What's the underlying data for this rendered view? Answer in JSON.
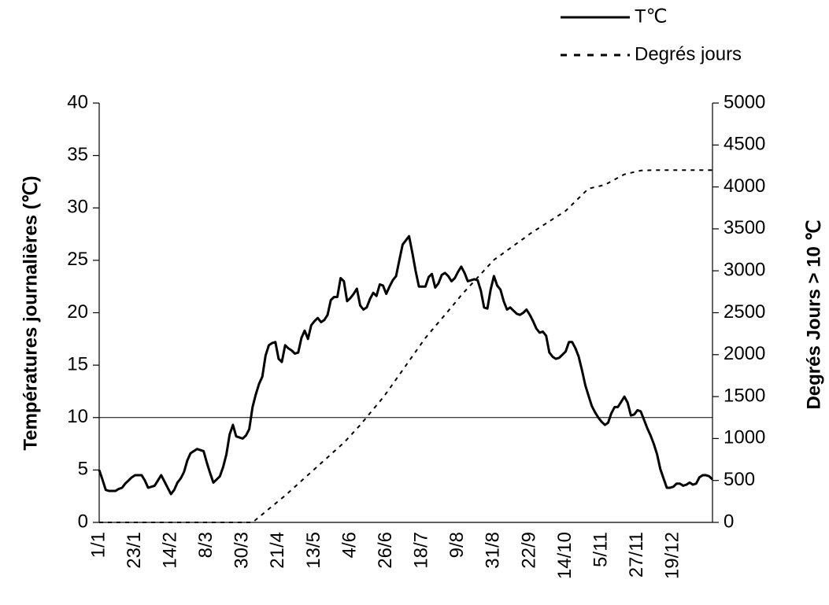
{
  "chart_data": {
    "type": "line",
    "y_label": "Températures journalières (℃)",
    "y2_label": "Degrés Jours > 10 ℃",
    "categories": [
      "1/1",
      null,
      null,
      null,
      null,
      null,
      null,
      null,
      null,
      null,
      null,
      "23/1",
      null,
      null,
      null,
      null,
      null,
      null,
      null,
      null,
      null,
      null,
      "14/2",
      null,
      null,
      null,
      null,
      null,
      null,
      null,
      null,
      null,
      null,
      "8/3",
      null,
      null,
      null,
      null,
      null,
      null,
      null,
      null,
      null,
      null,
      "30/3",
      null,
      null,
      null,
      null,
      null,
      null,
      null,
      null,
      null,
      null,
      "21/4",
      null,
      null,
      null,
      null,
      null,
      null,
      null,
      null,
      null,
      null,
      "13/5",
      null,
      null,
      null,
      null,
      null,
      null,
      null,
      null,
      null,
      null,
      "4/6",
      null,
      null,
      null,
      null,
      null,
      null,
      null,
      null,
      null,
      null,
      "26/6",
      null,
      null,
      null,
      null,
      null,
      null,
      null,
      null,
      null,
      null,
      "18/7",
      null,
      null,
      null,
      null,
      null,
      null,
      null,
      null,
      null,
      null,
      "9/8",
      null,
      null,
      null,
      null,
      null,
      null,
      null,
      null,
      null,
      null,
      "31/8",
      null,
      null,
      null,
      null,
      null,
      null,
      null,
      null,
      null,
      null,
      "22/9",
      null,
      null,
      null,
      null,
      null,
      null,
      null,
      null,
      null,
      null,
      "14/10",
      null,
      null,
      null,
      null,
      null,
      null,
      null,
      null,
      null,
      null,
      "5/11",
      null,
      null,
      null,
      null,
      null,
      null,
      null,
      null,
      null,
      null,
      "27/11",
      null,
      null,
      null,
      null,
      null,
      null,
      null,
      null,
      null,
      null,
      "19/12",
      null,
      null,
      null,
      null,
      null,
      null,
      null,
      null,
      null,
      null,
      null,
      null
    ],
    "series": [
      {
        "name": "T℃",
        "color": "#000000",
        "style": "solid",
        "values": [
          5,
          4.1,
          3.1,
          3,
          3,
          3,
          3.2,
          3.3,
          3.7,
          4,
          4.3,
          4.5,
          4.5,
          4.5,
          4,
          3.3,
          3.4,
          3.5,
          4,
          4.5,
          3.9,
          3.3,
          2.7,
          3.1,
          3.8,
          4.2,
          4.8,
          5.9,
          6.6,
          6.8,
          7,
          6.9,
          6.8,
          5.7,
          4.7,
          3.8,
          4.1,
          4.4,
          5.3,
          6.5,
          8.4,
          9.3,
          8.2,
          8.1,
          8,
          8.3,
          8.9,
          11,
          12.2,
          13.2,
          13.9,
          15.9,
          16.9,
          17.1,
          17.2,
          15.6,
          15.3,
          16.9,
          16.6,
          16.4,
          16.1,
          16.2,
          17.6,
          18.3,
          17.5,
          18.8,
          19.2,
          19.5,
          19.1,
          19.3,
          19.8,
          21.2,
          21.5,
          21.5,
          23.3,
          23,
          21.1,
          21.4,
          21.8,
          22.3,
          20.7,
          20.3,
          20.5,
          21.3,
          21.9,
          21.6,
          22.7,
          22.6,
          21.8,
          22.5,
          23.1,
          23.5,
          25,
          26.5,
          26.9,
          27.3,
          25.7,
          24,
          22.5,
          22.5,
          22.5,
          23.4,
          23.7,
          22.4,
          22.8,
          23.6,
          23.8,
          23.5,
          23,
          23.3,
          23.9,
          24.4,
          23.8,
          23,
          23.1,
          23.2,
          23.1,
          22.1,
          20.5,
          20.4,
          22.2,
          23.5,
          22.6,
          22.2,
          21.1,
          20.3,
          20.5,
          20.2,
          19.9,
          19.8,
          20,
          20.3,
          19.8,
          19.2,
          18.5,
          18.1,
          18.2,
          17.8,
          16.2,
          15.8,
          15.6,
          15.7,
          16,
          16.3,
          17.2,
          17.2,
          16.6,
          15.8,
          14.5,
          13.1,
          12.1,
          11.1,
          10.5,
          10,
          9.6,
          9.3,
          9.5,
          10.4,
          11,
          11,
          11.5,
          12,
          11.4,
          10.2,
          10.3,
          10.7,
          10.6,
          9.8,
          9,
          8.3,
          7.5,
          6.5,
          5.1,
          4.2,
          3.3,
          3.3,
          3.4,
          3.7,
          3.7,
          3.5,
          3.6,
          3.8,
          3.6,
          3.7,
          4.3,
          4.5,
          4.5,
          4.4,
          4.1
        ]
      },
      {
        "name": "Degrés jours",
        "color": "#000000",
        "style": "dashed",
        "axis": "y2",
        "values": [
          0,
          0,
          0,
          0,
          0,
          0,
          0,
          0,
          0,
          0,
          0,
          0,
          0,
          0,
          0,
          0,
          0,
          0,
          0,
          0,
          0,
          0,
          0,
          0,
          0,
          0,
          0,
          0,
          0,
          0,
          0,
          0,
          0,
          0,
          0,
          0,
          0,
          0,
          0,
          0,
          0,
          0,
          0,
          0,
          0,
          0,
          0,
          0,
          32,
          64,
          96,
          128,
          160,
          192,
          224,
          256,
          288,
          320,
          355,
          390,
          425,
          460,
          495,
          530,
          565,
          600,
          635,
          670,
          705,
          740,
          775,
          810,
          845,
          880,
          915,
          950,
          992,
          1034,
          1076,
          1118,
          1160,
          1207,
          1254,
          1301,
          1348,
          1395,
          1442,
          1489,
          1540,
          1595,
          1650,
          1705,
          1760,
          1815,
          1870,
          1925,
          1980,
          2035,
          2090,
          2145,
          2200,
          2246,
          2292,
          2338,
          2384,
          2430,
          2476,
          2522,
          2568,
          2614,
          2660,
          2710,
          2752,
          2794,
          2836,
          2878,
          2920,
          2962,
          3004,
          3046,
          3088,
          3130,
          3158,
          3186,
          3214,
          3242,
          3270,
          3298,
          3326,
          3354,
          3382,
          3410,
          3440,
          3465,
          3490,
          3515,
          3540,
          3565,
          3590,
          3615,
          3640,
          3665,
          3690,
          3715,
          3753,
          3791,
          3829,
          3867,
          3905,
          3943,
          3980,
          3989,
          3998,
          4007,
          4016,
          4025,
          4046,
          4067,
          4088,
          4109,
          4130,
          4150,
          4159,
          4168,
          4177,
          4186,
          4195,
          4197,
          4198,
          4199,
          4200,
          4200,
          4200,
          4200,
          4200,
          4200,
          4200,
          4200,
          4200,
          4200,
          4200,
          4200,
          4200,
          4200,
          4200,
          4200,
          4200,
          4200,
          4200
        ]
      }
    ],
    "ylim": [
      0,
      40
    ],
    "yticks": [
      0,
      5,
      10,
      15,
      20,
      25,
      30,
      35,
      40
    ],
    "y2lim": [
      0,
      5000
    ],
    "y2ticks": [
      0,
      500,
      1000,
      1500,
      2000,
      2500,
      3000,
      3500,
      4000,
      4500,
      5000
    ],
    "hline": 10,
    "grid": false,
    "legend": "top-right"
  }
}
